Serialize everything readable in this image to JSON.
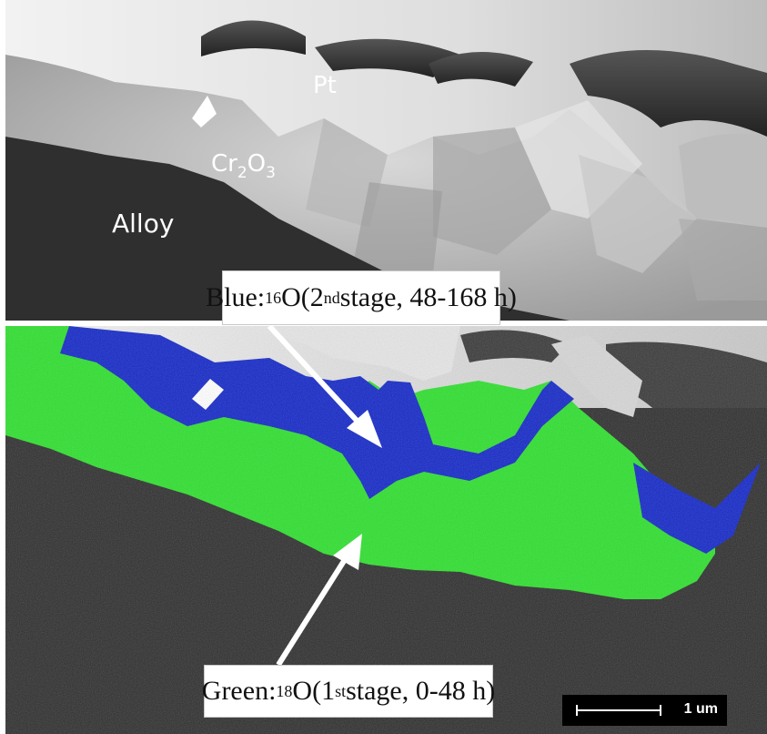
{
  "top_panel": {
    "labels": {
      "pt": "Pt",
      "oxide_main": "Cr",
      "oxide_sub1": "2",
      "oxide_mid": "O",
      "oxide_sub2": "3",
      "alloy": "Alloy"
    }
  },
  "callouts": {
    "blue": {
      "prefix": "Blue: ",
      "isotope_mass": "16",
      "element": "O",
      "open": " (2",
      "ordinal_suffix": "nd",
      "rest": " stage, 48-168 h)"
    },
    "green": {
      "prefix": "Green: ",
      "isotope_mass": "18",
      "element": "O",
      "open": " (1",
      "ordinal_suffix": "st",
      "rest": " stage, 0-48 h)"
    }
  },
  "scale_bar": {
    "label": "1 um"
  },
  "colors": {
    "alloy": "#2f2f2f",
    "oxide": "#cfcfcf",
    "platinum": "#e6e6e6",
    "pt_cap": "#3a3a3a",
    "blue_map": "#1428c8",
    "green_map": "#2ee02e",
    "arrow": "#ffffff"
  }
}
